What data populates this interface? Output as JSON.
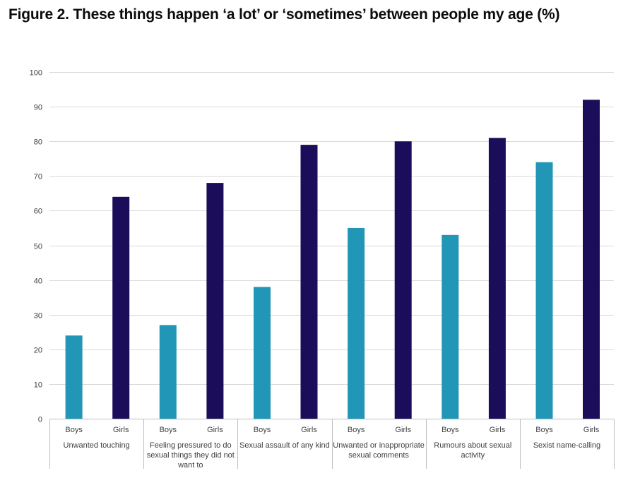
{
  "figure_title": "Figure 2. These things happen ‘a lot’ or ‘sometimes’ between people my age (%)",
  "colors": {
    "boys": "#2196B6",
    "girls": "#1B0D5A",
    "grid": "#D9D9D9",
    "axis": "#BFBFBF",
    "text": "#404040"
  },
  "chart_data": {
    "type": "bar",
    "title": "",
    "xlabel": "",
    "ylabel": "",
    "ylim": [
      0,
      100
    ],
    "yticks": [
      0,
      10,
      20,
      30,
      40,
      50,
      60,
      70,
      80,
      90,
      100
    ],
    "grid": true,
    "legend": "none",
    "sub_categories": [
      "Boys",
      "Girls"
    ],
    "groups": [
      {
        "label_lines": [
          "Unwanted touching"
        ],
        "values": [
          24,
          64
        ]
      },
      {
        "label_lines": [
          "Feeling pressured to do",
          "sexual things they did not",
          "want to"
        ],
        "values": [
          27,
          68
        ]
      },
      {
        "label_lines": [
          "Sexual assault of any kind"
        ],
        "values": [
          38,
          79
        ]
      },
      {
        "label_lines": [
          "Unwanted or inappropriate",
          "sexual comments"
        ],
        "values": [
          55,
          80
        ]
      },
      {
        "label_lines": [
          "Rumours about sexual",
          "activity"
        ],
        "values": [
          53,
          81
        ]
      },
      {
        "label_lines": [
          "Sexist name-calling"
        ],
        "values": [
          74,
          92
        ]
      }
    ]
  }
}
